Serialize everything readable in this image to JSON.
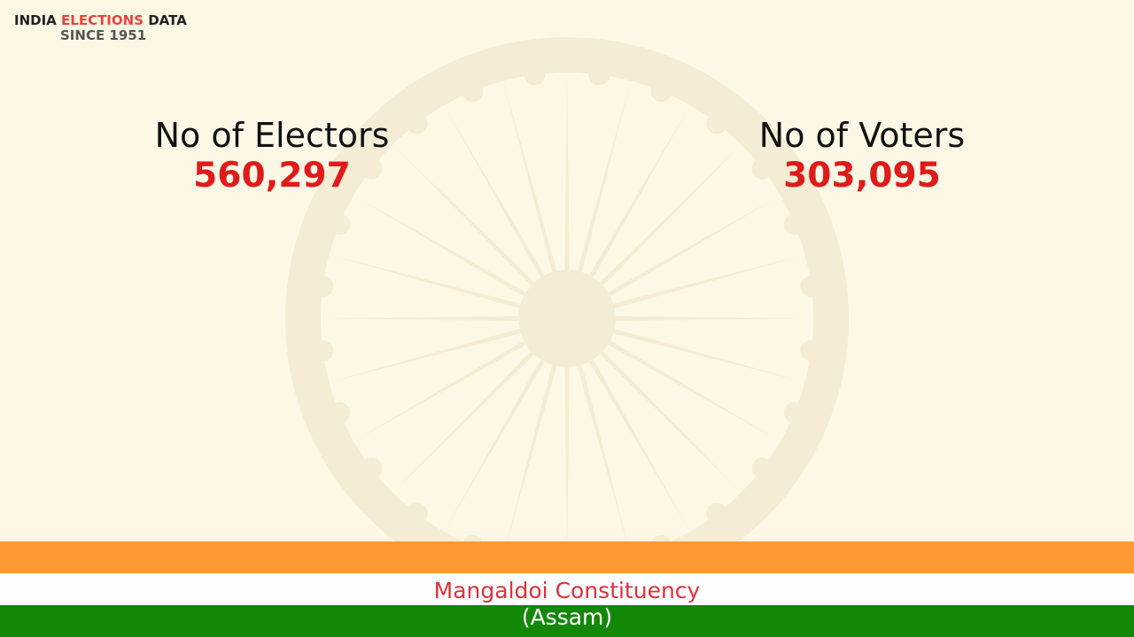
{
  "logo": {
    "word1": "INDIA",
    "word2": "ELECTIONS",
    "word3": "DATA",
    "since": "SINCE 1951"
  },
  "stats": [
    {
      "label": "No of Electors",
      "value": "560,297"
    },
    {
      "label": "No of Voters",
      "value": "303,095"
    }
  ],
  "footer": {
    "constituency": "Mangaldoi Constituency",
    "state": "(Assam)"
  }
}
